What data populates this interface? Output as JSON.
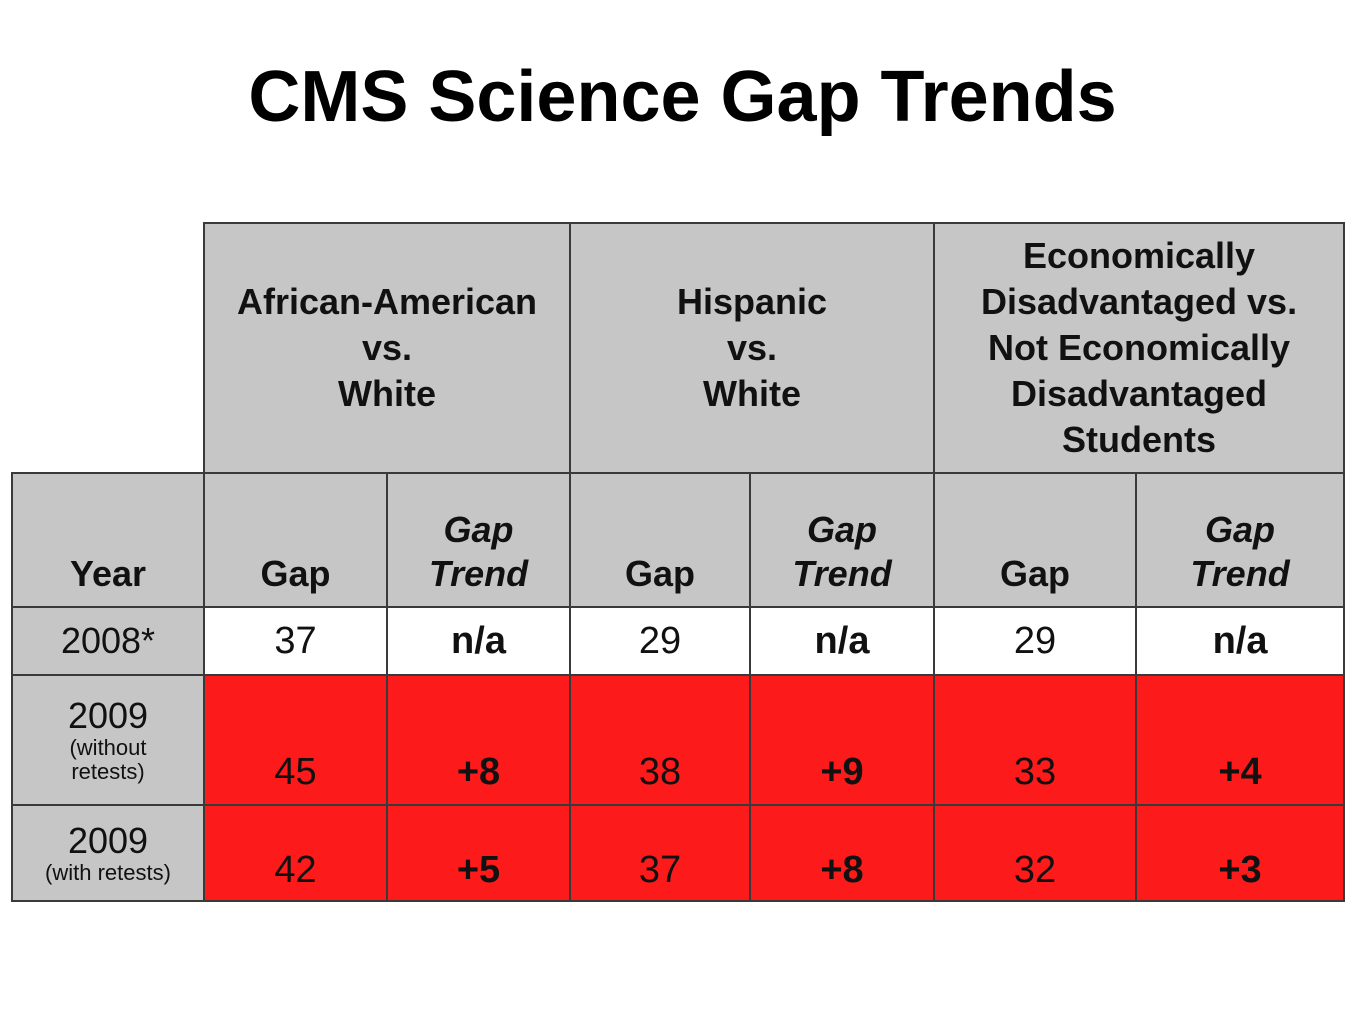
{
  "title": "CMS Science Gap Trends",
  "groups": [
    {
      "line1": "African-American",
      "line2": "vs.",
      "line3": "White"
    },
    {
      "line1": "Hispanic",
      "line2": "vs.",
      "line3": "White"
    },
    {
      "line1": "Economically",
      "line2": "Disadvantaged vs.",
      "line3": "Not Economically",
      "line4": "Disadvantaged",
      "line5": "Students"
    }
  ],
  "columns": {
    "year": "Year",
    "gap": "Gap",
    "trend_line1": "Gap",
    "trend_line2": "Trend"
  },
  "rows": [
    {
      "year": "2008*",
      "year_note": "",
      "status": "neutral",
      "values": [
        "37",
        "n/a",
        "29",
        "n/a",
        "29",
        "n/a"
      ]
    },
    {
      "year": "2009",
      "year_note_line1": "(without",
      "year_note_line2": "retests)",
      "status": "widening",
      "values": [
        "45",
        "+8",
        "38",
        "+9",
        "33",
        "+4"
      ]
    },
    {
      "year": "2009",
      "year_note_line1": "(with retests)",
      "status": "widening",
      "values": [
        "42",
        "+5",
        "37",
        "+8",
        "32",
        "+3"
      ]
    }
  ],
  "colors": {
    "header_bg": "#c6c6c6",
    "widening_bg": "#fc1a1a",
    "neutral_bg": "#ffffff"
  }
}
